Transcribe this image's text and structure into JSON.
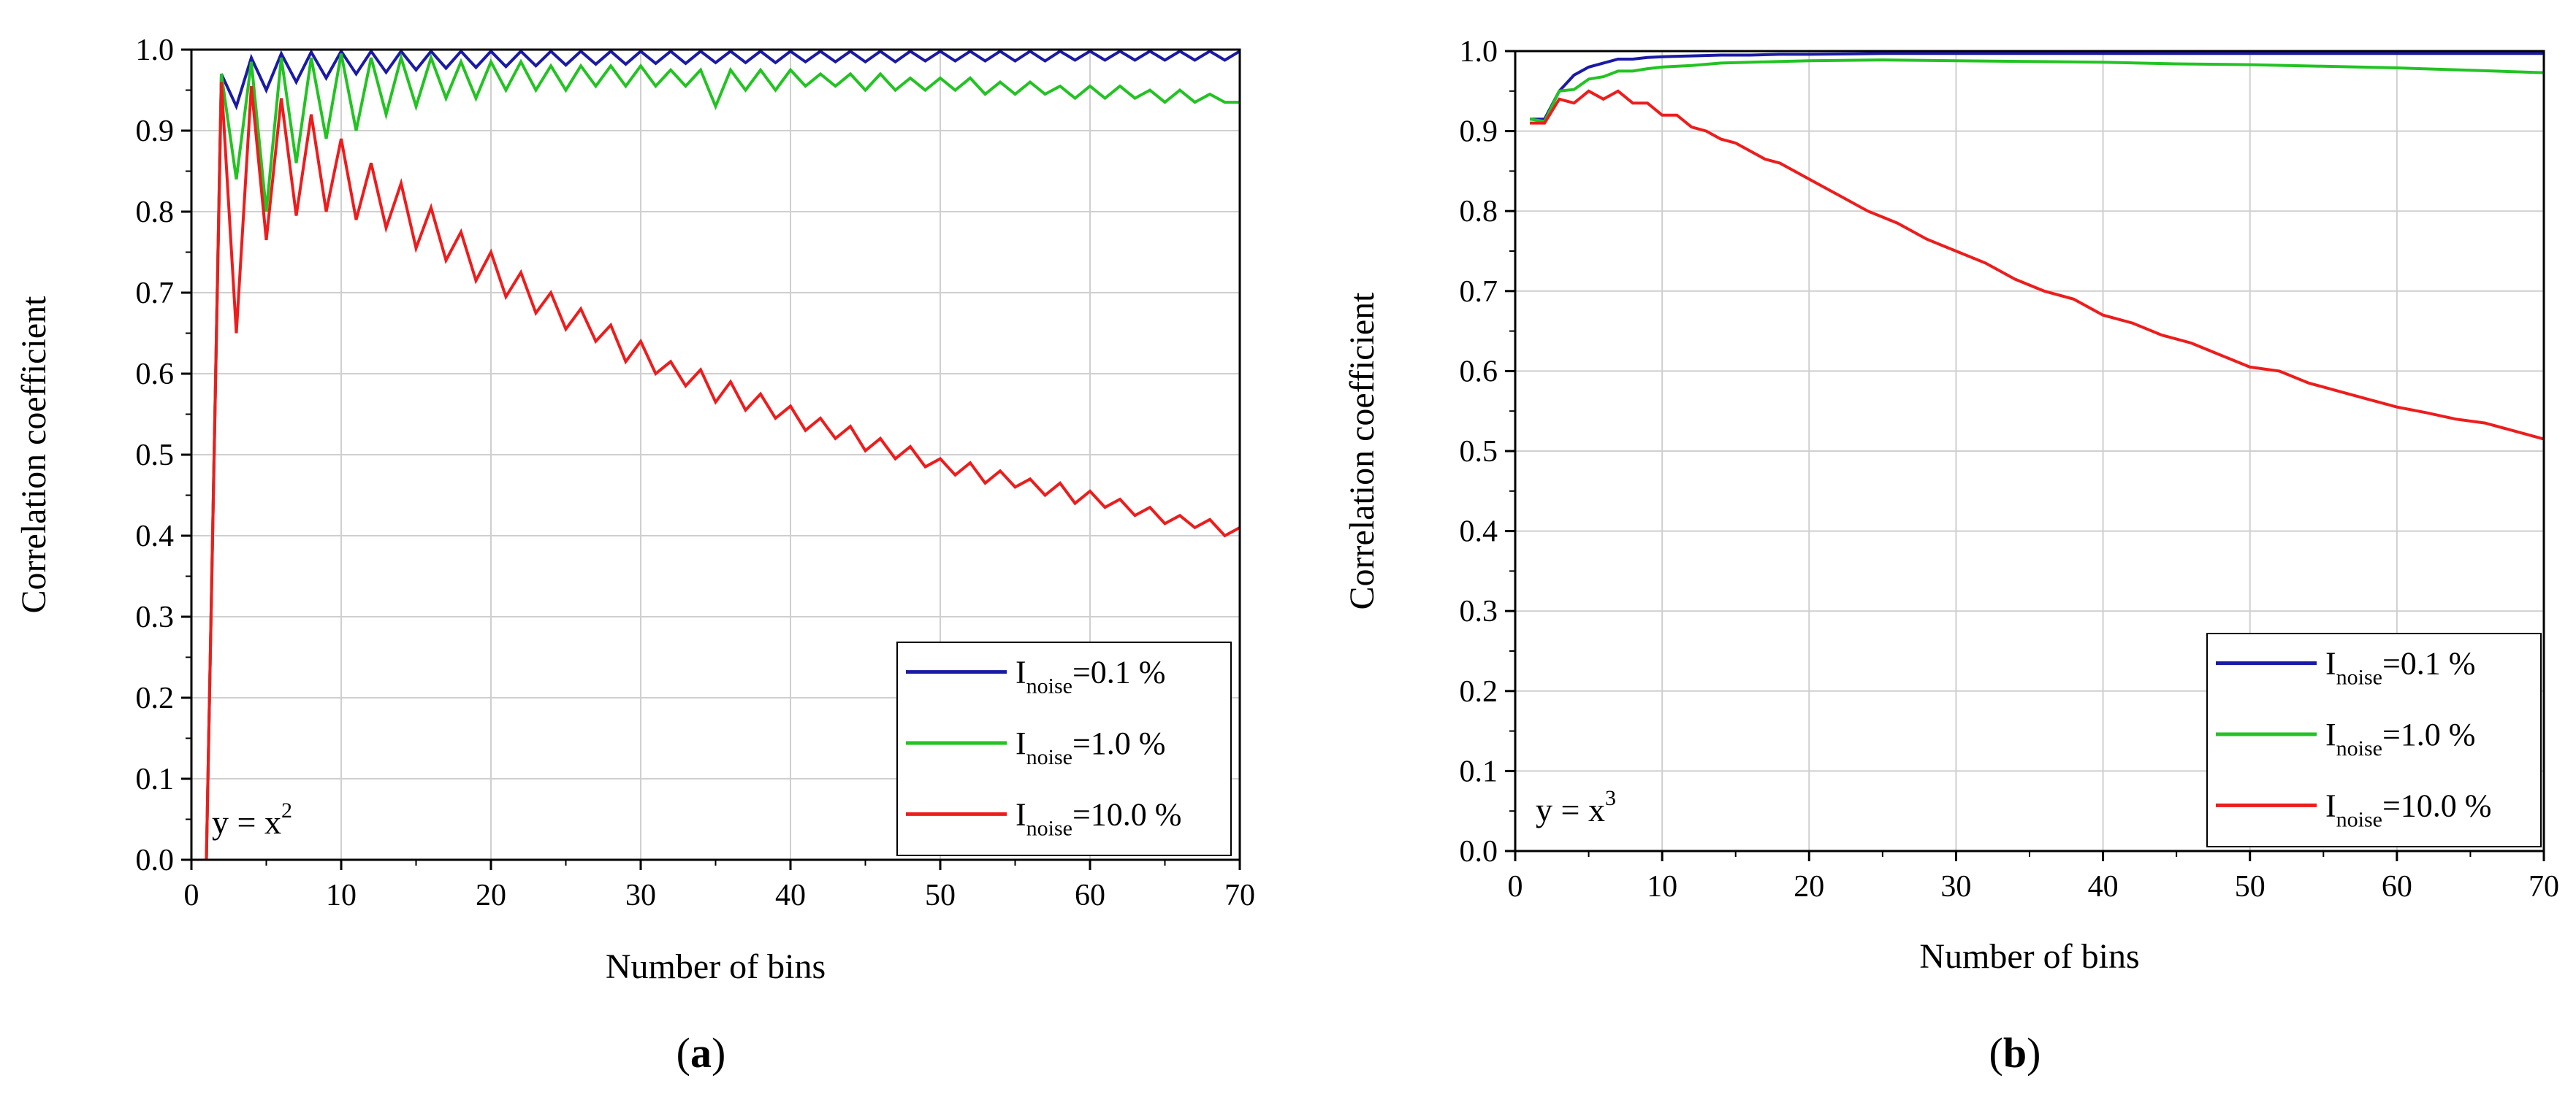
{
  "chart_data": [
    {
      "panel": "a",
      "type": "line",
      "panel_label": {
        "open": "(",
        "letter": "a",
        "close": ")"
      },
      "xlabel": "Number of bins",
      "ylabel": "Correlation coefficient",
      "xlim": [
        0,
        70
      ],
      "ylim": [
        0,
        1.0
      ],
      "xticks": [
        0,
        10,
        20,
        30,
        40,
        50,
        60,
        70
      ],
      "yticks": [
        0.0,
        0.1,
        0.2,
        0.3,
        0.4,
        0.5,
        0.6,
        0.7,
        0.8,
        0.9,
        1.0
      ],
      "ytick_labels": [
        "0.0",
        "0.1",
        "0.2",
        "0.3",
        "0.4",
        "0.5",
        "0.6",
        "0.7",
        "0.8",
        "0.9",
        "1.0"
      ],
      "grid": true,
      "legend_position": "bottom-right",
      "annotation": {
        "prefix": "y = x",
        "sup": "2"
      },
      "series": [
        {
          "name": "I noise=0.1 %",
          "label": {
            "main": "I",
            "sub": "noise",
            "rest": "=0.1 %"
          },
          "color": "#1a1aa6",
          "x": [
            1,
            2,
            3,
            4,
            5,
            6,
            7,
            8,
            9,
            10,
            11,
            12,
            13,
            14,
            15,
            16,
            17,
            18,
            19,
            20,
            21,
            22,
            23,
            24,
            25,
            26,
            27,
            28,
            29,
            30,
            31,
            32,
            33,
            34,
            35,
            36,
            37,
            38,
            39,
            40,
            41,
            42,
            43,
            44,
            45,
            46,
            47,
            48,
            49,
            50,
            51,
            52,
            53,
            54,
            55,
            56,
            57,
            58,
            59,
            60,
            61,
            62,
            63,
            64,
            65,
            66,
            67,
            68,
            69,
            70
          ],
          "y": [
            0.0,
            0.97,
            0.93,
            0.99,
            0.95,
            0.995,
            0.96,
            0.997,
            0.965,
            0.998,
            0.97,
            0.998,
            0.972,
            0.998,
            0.975,
            0.998,
            0.977,
            0.998,
            0.978,
            0.998,
            0.979,
            0.998,
            0.98,
            0.998,
            0.981,
            0.998,
            0.982,
            0.998,
            0.982,
            0.998,
            0.983,
            0.998,
            0.983,
            0.998,
            0.984,
            0.998,
            0.984,
            0.998,
            0.984,
            0.998,
            0.985,
            0.998,
            0.985,
            0.998,
            0.985,
            0.998,
            0.985,
            0.998,
            0.986,
            0.998,
            0.986,
            0.998,
            0.986,
            0.998,
            0.986,
            0.998,
            0.986,
            0.998,
            0.987,
            0.998,
            0.987,
            0.998,
            0.987,
            0.998,
            0.987,
            0.998,
            0.987,
            0.998,
            0.987,
            0.998
          ]
        },
        {
          "name": "I noise=1.0 %",
          "label": {
            "main": "I",
            "sub": "noise",
            "rest": "=1.0 %"
          },
          "color": "#22c322",
          "x": [
            1,
            2,
            3,
            4,
            5,
            6,
            7,
            8,
            9,
            10,
            11,
            12,
            13,
            14,
            15,
            16,
            17,
            18,
            19,
            20,
            21,
            22,
            23,
            24,
            25,
            26,
            27,
            28,
            29,
            30,
            31,
            32,
            33,
            34,
            35,
            36,
            37,
            38,
            39,
            40,
            41,
            42,
            43,
            44,
            45,
            46,
            47,
            48,
            49,
            50,
            51,
            52,
            53,
            54,
            55,
            56,
            57,
            58,
            59,
            60,
            61,
            62,
            63,
            64,
            65,
            66,
            67,
            68,
            69,
            70
          ],
          "y": [
            0.0,
            0.97,
            0.84,
            0.985,
            0.8,
            0.99,
            0.86,
            0.99,
            0.89,
            0.995,
            0.9,
            0.99,
            0.92,
            0.99,
            0.93,
            0.99,
            0.94,
            0.985,
            0.94,
            0.985,
            0.95,
            0.985,
            0.95,
            0.98,
            0.95,
            0.98,
            0.955,
            0.98,
            0.955,
            0.98,
            0.955,
            0.975,
            0.955,
            0.975,
            0.93,
            0.975,
            0.95,
            0.975,
            0.95,
            0.975,
            0.955,
            0.97,
            0.955,
            0.97,
            0.95,
            0.97,
            0.95,
            0.965,
            0.95,
            0.965,
            0.95,
            0.965,
            0.945,
            0.96,
            0.945,
            0.96,
            0.945,
            0.955,
            0.94,
            0.955,
            0.94,
            0.955,
            0.94,
            0.95,
            0.935,
            0.95,
            0.935,
            0.945,
            0.935,
            0.935
          ]
        },
        {
          "name": "I noise=10.0 %",
          "label": {
            "main": "I",
            "sub": "noise",
            "rest": "=10.0 %"
          },
          "color": "#ee1c1c",
          "x": [
            1,
            2,
            3,
            4,
            5,
            6,
            7,
            8,
            9,
            10,
            11,
            12,
            13,
            14,
            15,
            16,
            17,
            18,
            19,
            20,
            21,
            22,
            23,
            24,
            25,
            26,
            27,
            28,
            29,
            30,
            31,
            32,
            33,
            34,
            35,
            36,
            37,
            38,
            39,
            40,
            41,
            42,
            43,
            44,
            45,
            46,
            47,
            48,
            49,
            50,
            51,
            52,
            53,
            54,
            55,
            56,
            57,
            58,
            59,
            60,
            61,
            62,
            63,
            64,
            65,
            66,
            67,
            68,
            69,
            70
          ],
          "y": [
            0.0,
            0.96,
            0.65,
            0.955,
            0.765,
            0.94,
            0.795,
            0.92,
            0.8,
            0.89,
            0.79,
            0.86,
            0.78,
            0.835,
            0.755,
            0.805,
            0.74,
            0.775,
            0.715,
            0.75,
            0.695,
            0.725,
            0.675,
            0.7,
            0.655,
            0.68,
            0.64,
            0.66,
            0.615,
            0.64,
            0.6,
            0.615,
            0.585,
            0.605,
            0.565,
            0.59,
            0.555,
            0.575,
            0.545,
            0.56,
            0.53,
            0.545,
            0.52,
            0.535,
            0.505,
            0.52,
            0.495,
            0.51,
            0.485,
            0.495,
            0.475,
            0.49,
            0.465,
            0.48,
            0.46,
            0.47,
            0.45,
            0.465,
            0.44,
            0.455,
            0.435,
            0.445,
            0.425,
            0.435,
            0.415,
            0.425,
            0.41,
            0.42,
            0.4,
            0.41
          ]
        }
      ]
    },
    {
      "panel": "b",
      "type": "line",
      "panel_label": {
        "open": "(",
        "letter": "b",
        "close": ")"
      },
      "xlabel": "Number of bins",
      "ylabel": "Correlation coefficient",
      "xlim": [
        0,
        70
      ],
      "ylim": [
        0,
        1.0
      ],
      "xticks": [
        0,
        10,
        20,
        30,
        40,
        50,
        60,
        70
      ],
      "yticks": [
        0.0,
        0.1,
        0.2,
        0.3,
        0.4,
        0.5,
        0.6,
        0.7,
        0.8,
        0.9,
        1.0
      ],
      "ytick_labels": [
        "0.0",
        "0.1",
        "0.2",
        "0.3",
        "0.4",
        "0.5",
        "0.6",
        "0.7",
        "0.8",
        "0.9",
        "1.0"
      ],
      "grid": true,
      "legend_position": "bottom-right",
      "annotation": {
        "prefix": "y = x",
        "sup": "3"
      },
      "series": [
        {
          "name": "I noise=0.1 %",
          "label": {
            "main": "I",
            "sub": "noise",
            "rest": "=0.1 %"
          },
          "color": "#1a1aa6",
          "x": [
            1,
            2,
            3,
            4,
            5,
            6,
            7,
            8,
            9,
            10,
            12,
            14,
            16,
            18,
            20,
            25,
            30,
            35,
            40,
            45,
            50,
            55,
            60,
            65,
            70
          ],
          "y": [
            0.915,
            0.915,
            0.95,
            0.97,
            0.98,
            0.985,
            0.99,
            0.99,
            0.992,
            0.993,
            0.994,
            0.995,
            0.995,
            0.996,
            0.996,
            0.997,
            0.997,
            0.997,
            0.997,
            0.997,
            0.997,
            0.997,
            0.997,
            0.997,
            0.997
          ]
        },
        {
          "name": "I noise=1.0 %",
          "label": {
            "main": "I",
            "sub": "noise",
            "rest": "=1.0 %"
          },
          "color": "#22c322",
          "x": [
            1,
            2,
            3,
            4,
            5,
            6,
            7,
            8,
            9,
            10,
            12,
            14,
            16,
            18,
            20,
            25,
            30,
            35,
            40,
            45,
            50,
            55,
            60,
            65,
            70
          ],
          "y": [
            0.915,
            0.912,
            0.95,
            0.952,
            0.965,
            0.968,
            0.975,
            0.975,
            0.978,
            0.98,
            0.982,
            0.985,
            0.986,
            0.987,
            0.988,
            0.989,
            0.988,
            0.987,
            0.986,
            0.984,
            0.983,
            0.981,
            0.979,
            0.976,
            0.973
          ]
        },
        {
          "name": "I noise=10.0 %",
          "label": {
            "main": "I",
            "sub": "noise",
            "rest": "=10.0 %"
          },
          "color": "#ee1c1c",
          "x": [
            1,
            2,
            3,
            4,
            5,
            6,
            7,
            8,
            9,
            10,
            11,
            12,
            13,
            14,
            15,
            16,
            17,
            18,
            19,
            20,
            22,
            24,
            26,
            28,
            30,
            32,
            34,
            36,
            38,
            40,
            42,
            44,
            46,
            48,
            50,
            52,
            54,
            56,
            58,
            60,
            62,
            64,
            66,
            68,
            70
          ],
          "y": [
            0.91,
            0.91,
            0.94,
            0.935,
            0.95,
            0.94,
            0.95,
            0.935,
            0.935,
            0.92,
            0.92,
            0.905,
            0.9,
            0.89,
            0.885,
            0.875,
            0.865,
            0.86,
            0.85,
            0.84,
            0.82,
            0.8,
            0.785,
            0.765,
            0.75,
            0.735,
            0.715,
            0.7,
            0.69,
            0.67,
            0.66,
            0.645,
            0.635,
            0.62,
            0.605,
            0.6,
            0.585,
            0.575,
            0.565,
            0.555,
            0.548,
            0.54,
            0.535,
            0.525,
            0.515
          ]
        }
      ]
    }
  ]
}
